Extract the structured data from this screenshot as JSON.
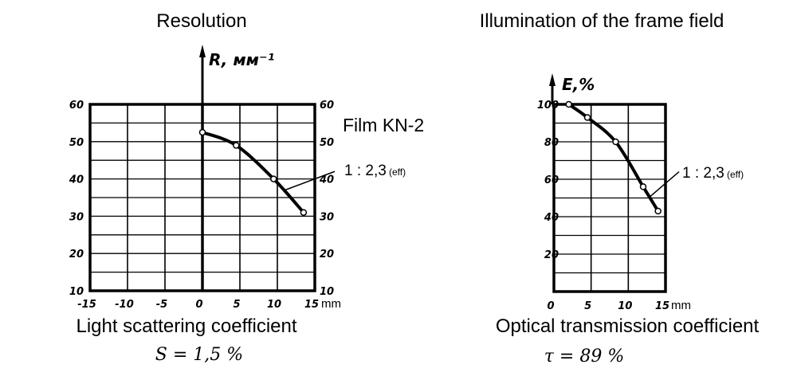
{
  "chart_data": [
    {
      "type": "line",
      "title": "Resolution",
      "ylabel": "R, мм⁻¹",
      "xlabel": "mm",
      "x_ticks": [
        "-15",
        "-10",
        "-5",
        "0",
        "5",
        "10",
        "15"
      ],
      "y_ticks": [
        "10",
        "20",
        "30",
        "40",
        "50",
        "60"
      ],
      "xlim": [
        -15,
        15
      ],
      "ylim": [
        10,
        60
      ],
      "grid": true,
      "series": [
        {
          "x": [
            0,
            4.5,
            9.5,
            13.5
          ],
          "y": [
            52.5,
            49,
            40,
            31
          ]
        }
      ],
      "annotations": {
        "film": "Film KN-2",
        "aperture": "1 : 2,3",
        "aperture_note": "(eff)"
      },
      "caption": "Light scattering coefficient",
      "caption_value": "S = 1,5 %"
    },
    {
      "type": "line",
      "title": "Illumination of the frame field",
      "ylabel": "E,%",
      "xlabel": "mm",
      "x_ticks": [
        "0",
        "5",
        "10",
        "15"
      ],
      "y_ticks": [
        "20",
        "40",
        "60",
        "80",
        "100"
      ],
      "xlim": [
        0,
        15
      ],
      "ylim": [
        0,
        100
      ],
      "grid": true,
      "series": [
        {
          "x": [
            2,
            4.5,
            8.3,
            12,
            14
          ],
          "y": [
            100,
            93,
            80,
            56,
            43
          ]
        }
      ],
      "annotations": {
        "aperture": "1 : 2,3",
        "aperture_note": "(eff)"
      },
      "caption": "Optical transmission coefficient",
      "caption_value": "τ = 89 %"
    }
  ]
}
